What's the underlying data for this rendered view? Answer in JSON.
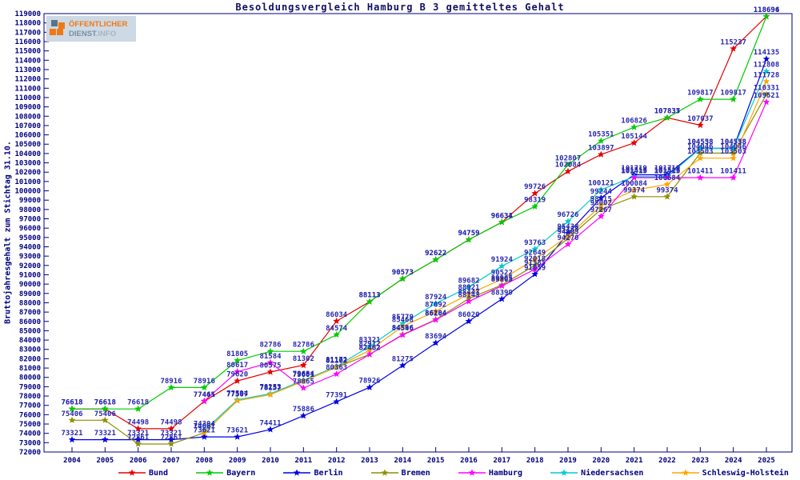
{
  "header": {
    "logo": {
      "line1": "ÖFFENTLICHER",
      "line2a": "DIENST",
      "line2b": ".INFO",
      "colors": {
        "orange": "#f07814",
        "slate": "#7a8fa3",
        "background": "#cdd9e4"
      }
    }
  },
  "chart_data": {
    "type": "line",
    "title": "Besoldungsvergleich Hamburg B 3 gemitteltes Gehalt",
    "ylabel": "Bruttojahresgehalt zum Stichtag 31.10.",
    "xlabel": "",
    "grid": false,
    "legend_position": "bottom",
    "ylim": [
      72000,
      119000
    ],
    "ytick_step": 1000,
    "x": [
      2004,
      2005,
      2006,
      2007,
      2008,
      2009,
      2010,
      2011,
      2012,
      2013,
      2014,
      2015,
      2016,
      2017,
      2018,
      2019,
      2020,
      2021,
      2022,
      2023,
      2024,
      2025
    ],
    "axis_color": "#000080",
    "label_color": "#2828b0",
    "series": [
      {
        "name": "Bund",
        "color": "#e60000",
        "values": [
          76618,
          76618,
          74498,
          74498,
          77441,
          79620,
          80575,
          81302,
          86034,
          88113,
          90573,
          92622,
          94759,
          96634,
          99726,
          102084,
          103897,
          105144,
          107837,
          107037,
          115237,
          118696
        ]
      },
      {
        "name": "Bayern",
        "color": "#00cc00",
        "values": [
          76618,
          76618,
          76618,
          78916,
          78916,
          81805,
          82786,
          82786,
          84574,
          88113,
          90573,
          92622,
          94759,
          96631,
          98319,
          102807,
          105351,
          106826,
          107835,
          109817,
          109817,
          118694
        ]
      },
      {
        "name": "Berlin",
        "color": "#0000e6",
        "values": [
          73321,
          73321,
          73321,
          73321,
          73621,
          73621,
          74411,
          75886,
          77391,
          78926,
          81275,
          83694,
          86020,
          88399,
          91059,
          95438,
          99244,
          101719,
          101719,
          104558,
          104558,
          114135
        ]
      },
      {
        "name": "Bremen",
        "color": "#8f8f00",
        "values": [
          75406,
          75406,
          72861,
          72861,
          74061,
          77507,
          78157,
          79601,
          81102,
          82462,
          84596,
          86204,
          88443,
          89905,
          92018,
          94903,
          98002,
          99374,
          99374,
          104046,
          104046,
          110331
        ]
      },
      {
        "name": "Hamburg",
        "color": "#ff00ff",
        "values": [
          null,
          null,
          null,
          null,
          77465,
          80617,
          81584,
          78865,
          80363,
          82462,
          84546,
          86164,
          88143,
          89805,
          91585,
          94270,
          97267,
          101413,
          101413,
          101411,
          101411,
          109521
        ]
      },
      {
        "name": "Niedersachsen",
        "color": "#00cccc",
        "values": [
          null,
          null,
          null,
          null,
          74304,
          77594,
          78253,
          79684,
          81172,
          83321,
          85779,
          87924,
          89682,
          91924,
          93763,
          96726,
          100121,
          101516,
          101516,
          104538,
          104538,
          112808
        ]
      },
      {
        "name": "Schleswig-Holstein",
        "color": "#ffa500",
        "values": [
          null,
          null,
          null,
          null,
          74061,
          77507,
          78157,
          79601,
          81102,
          82912,
          85468,
          87092,
          88921,
          90522,
          92649,
          95138,
          98415,
          100084,
          100684,
          103503,
          103503,
          111728
        ]
      }
    ]
  }
}
